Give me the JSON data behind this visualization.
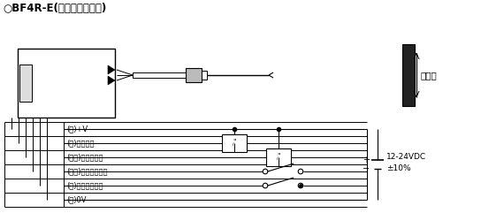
{
  "title": "○BF4R-E(外部同步输入型)",
  "wire_labels": [
    "(褐)+V",
    "(黑)控制输出",
    "(白色)自诊断输出",
    "(粉红)外部同步输入",
    "(橙)透光停止输入",
    "(蓝)0V"
  ],
  "detect_label": "检测物",
  "voltage_label": "12-24VDC\n±10%",
  "bg_color": "#ffffff",
  "line_color": "#000000"
}
